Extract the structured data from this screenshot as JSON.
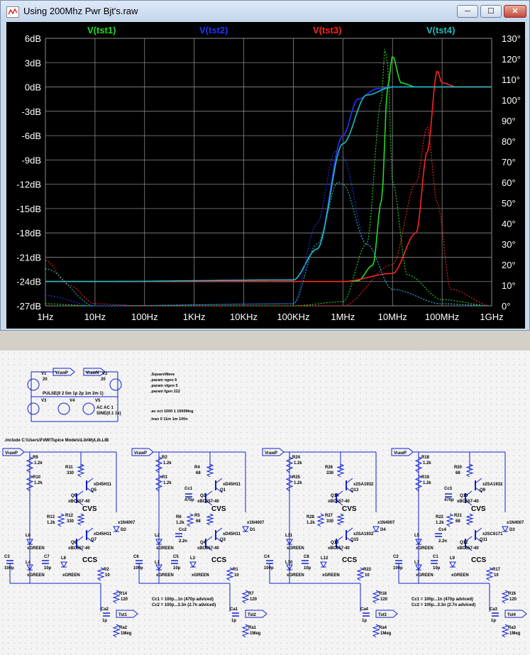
{
  "window": {
    "title": "Using 200Mhz Pwr Bjt's.raw",
    "buttons": {
      "minimize": "─",
      "maximize": "☐",
      "close": "✕"
    }
  },
  "colors": {
    "tst1": "#22dd22",
    "tst2": "#2233ff",
    "tst3": "#ff2222",
    "tst4": "#22bbbb",
    "grid": "#8a8a8a",
    "axis_text": "#ffffff",
    "schematic_blue": "#1020d0"
  },
  "chart_data": {
    "type": "line",
    "title": "",
    "x_scale": "log",
    "xlim": [
      1,
      1000000000
    ],
    "x_ticks": [
      "1Hz",
      "10Hz",
      "100Hz",
      "1KHz",
      "10KHz",
      "100KHz",
      "1MHz",
      "10MHz",
      "100MHz",
      "1GHz"
    ],
    "y_left_label": "dB",
    "ylim_left": [
      -27,
      6
    ],
    "y_left_ticks": [
      "6dB",
      "3dB",
      "0dB",
      "-3dB",
      "-6dB",
      "-9dB",
      "-12dB",
      "-15dB",
      "-18dB",
      "-21dB",
      "-24dB",
      "-27dB"
    ],
    "ylim_right": [
      0,
      130
    ],
    "y_right_ticks": [
      "130°",
      "120°",
      "110°",
      "100°",
      "90°",
      "80°",
      "70°",
      "60°",
      "50°",
      "40°",
      "30°",
      "20°",
      "10°",
      "0°"
    ],
    "grid": true,
    "legend": [
      "V(tst1)",
      "V(tst2)",
      "V(tst3)",
      "V(tst4)"
    ],
    "series": [
      {
        "name": "V(tst1)",
        "kind": "magnitude",
        "x": [
          1,
          10,
          100000,
          1000000,
          2000000,
          4000000,
          6000000,
          8000000,
          10000000,
          15000000,
          30000000,
          1000000000
        ],
        "y": [
          -24,
          -24,
          -24,
          -24,
          -23.9,
          -22,
          -14,
          0,
          3.8,
          0.5,
          0,
          0
        ]
      },
      {
        "name": "V(tst2)",
        "kind": "magnitude",
        "x": [
          1,
          10,
          100000,
          300000,
          1000000,
          2000000,
          5000000,
          10000000,
          1000000000
        ],
        "y": [
          -24,
          -24,
          -23.8,
          -20,
          -6,
          -1.5,
          -0.2,
          0,
          0
        ]
      },
      {
        "name": "V(tst3)",
        "kind": "magnitude",
        "x": [
          1,
          10,
          1000000,
          10000000,
          30000000,
          50000000,
          80000000,
          100000000,
          200000000,
          1000000000
        ],
        "y": [
          -24,
          -24,
          -24,
          -23,
          -18,
          -8,
          2,
          0.5,
          0,
          0
        ]
      },
      {
        "name": "V(tst4)",
        "kind": "magnitude",
        "x": [
          1,
          10,
          100000,
          300000,
          1000000,
          3000000,
          10000000,
          1000000000
        ],
        "y": [
          -24,
          -24,
          -23.8,
          -20,
          -7,
          -1,
          0,
          0
        ]
      },
      {
        "name": "V(tst1)",
        "kind": "phase",
        "x": [
          1,
          10,
          100000,
          1000000,
          3000000,
          6000000,
          7000000,
          8000000,
          10000000,
          20000000,
          100000000,
          1000000000
        ],
        "y": [
          1,
          0,
          0,
          2,
          30,
          100,
          125,
          118,
          60,
          15,
          3,
          0
        ]
      },
      {
        "name": "V(tst2)",
        "kind": "phase",
        "x": [
          1,
          10,
          100000,
          300000,
          700000,
          1000000,
          3000000,
          10000000,
          100000000,
          1000000000
        ],
        "y": [
          5,
          0,
          1,
          40,
          75,
          72,
          30,
          8,
          1,
          0
        ]
      },
      {
        "name": "V(tst3)",
        "kind": "phase",
        "x": [
          1,
          3,
          10,
          100,
          1000000,
          10000000,
          30000000,
          50000000,
          80000000,
          150000000,
          1000000000
        ],
        "y": [
          22,
          10,
          1,
          0,
          0,
          20,
          60,
          87,
          50,
          8,
          0
        ]
      },
      {
        "name": "V(tst4)",
        "kind": "phase",
        "x": [
          1,
          10,
          100000,
          300000,
          800000,
          1000000,
          3000000,
          10000000,
          100000000,
          1000000000
        ],
        "y": [
          18,
          0,
          1,
          30,
          60,
          59,
          30,
          8,
          1,
          0
        ]
      }
    ]
  },
  "schematic": {
    "directives": [
      ".SquareWave",
      ".param ogen 6",
      ".param vlgen 5",
      ".param fgen 222",
      ".ac oct 1000 1 1000Meg",
      ";tran 0 11m 1m 100n"
    ],
    "include": ".include C:\\Users\\FdW\\Tspice Models\\Lib\\MyLib.LIB",
    "sources": {
      "v1": "V1",
      "v1_val": "20",
      "v2": "V2",
      "v2_val": "20",
      "vrawp": "VrawP",
      "vrawn": "VrawN",
      "pulse": "PULSE(0 2 5m 1p 2p 1m 2m 1)",
      "v3": "V3",
      "v4": "V4",
      "v5": "V5",
      "v5_ac": "AC AC 1",
      "v5_sine": "SINE(0.1 1k)"
    },
    "stages": [
      {
        "rail": "VrawP",
        "r_top": "R9",
        "r_top_val": "1.2k",
        "r_bias": "R10",
        "r_bias_val": "1.2k",
        "r_emit": "R11",
        "r_emit_val": "330",
        "q_top": "Q5",
        "q_top_model": "xD45H11",
        "q_top2": "Q6",
        "q_top2_model": "xBC557-40",
        "label_cvs": "CVS",
        "r_mid": "R13",
        "r_mid_val": "1.2k",
        "r_mid2": "R12",
        "r_mid2_val": "330",
        "q_bot": "Q7",
        "q_bot_model": "xD45H11",
        "q_bot2": "Q8",
        "q_bot2_model": "xBC557-40",
        "label_ccs": "CCS",
        "diode": "D2",
        "diode_model": "x1N4007",
        "led1": "L6",
        "led2": "L4",
        "led3": "L8",
        "led_model": "xGREEN",
        "c1": "C3",
        "c1_val": "100p",
        "c2": "C7",
        "c2_val": "10p",
        "r_load": "R2",
        "r_load_val": "10",
        "r_out": "R14",
        "r_out_val": "120",
        "c_out": "Ca2",
        "c_out_val": "1p",
        "node": "Tst1",
        "r_term": "Ra2",
        "r_term_val": "1Meg",
        "cc_note": "",
        "cc_note2": ""
      },
      {
        "rail": "VrawP",
        "r_top": "R2",
        "r_top_val": "1.2k",
        "r_bias": "R3",
        "r_bias_val": "1.2k",
        "r_emit": "R4",
        "r_emit_val": "68",
        "q_top": "Q1",
        "q_top_model": "xD45H11",
        "q_top2": "Q2",
        "q_top2_model": "xBC557-40",
        "label_cvs": "CVS",
        "r_mid": "R6",
        "r_mid_val": "1.2k",
        "r_mid2": "R5",
        "r_mid2_val": "68",
        "q_bot": "Q3",
        "q_bot_model": "xD45H11",
        "q_bot2": "Q4",
        "q_bot2_model": "xBC557-40",
        "label_ccs": "CCS",
        "diode": "D1",
        "diode_model": "x1N4007",
        "led1": "L2",
        "led2": "L1",
        "led3": "L3",
        "led_model": "xGREEN",
        "c1": "C6",
        "c1_val": "100p",
        "c2": "C5",
        "c2_val": "10p",
        "r_load": "R1",
        "r_load_val": "10",
        "r_out": "R7",
        "r_out_val": "120",
        "c_out": "Ca1",
        "c_out_val": "1p",
        "node": "Tst2",
        "r_term": "Ra1",
        "r_term_val": "1Meg",
        "cc1": "Cc1",
        "cc1_val": "470p",
        "cc2": "Cc2",
        "cc2_val": "2.2n",
        "cc_note": "Cc1 = 100p...1n (470p adviced)",
        "cc_note2": "Cc2 = 100p...3.3n (2.7n adviced)"
      },
      {
        "rail": "VrawP",
        "r_top": "R24",
        "r_top_val": "1.2k",
        "r_bias": "R25",
        "r_bias_val": "1.2k",
        "r_emit": "R26",
        "r_emit_val": "330",
        "q_top": "Q13",
        "q_top_model": "x2SA1932",
        "q_top2": "Q14",
        "q_top2_model": "xBC557-40",
        "label_cvs": "CVS",
        "r_mid": "R28",
        "r_mid_val": "1.2k",
        "r_mid2": "R27",
        "r_mid2_val": "330",
        "q_bot": "Q15",
        "q_bot_model": "x2SA1932",
        "q_bot2": "Q16",
        "q_bot2_model": "xBC557-40",
        "label_ccs": "CCS",
        "diode": "D4",
        "diode_model": "x1N4007",
        "led1": "L11",
        "led2": "L10",
        "led3": "L12",
        "led_model": "xGREEN",
        "c1": "C4",
        "c1_val": "100p",
        "c2": "C8",
        "c2_val": "10p",
        "r_load": "R22",
        "r_load_val": "10",
        "r_out": "R18",
        "r_out_val": "120",
        "c_out": "Ca4",
        "c_out_val": "1p",
        "node": "Tst3",
        "r_term": "Ra4",
        "r_term_val": "1Meg",
        "cc_note": "",
        "cc_note2": ""
      },
      {
        "rail": "VrawP",
        "r_top": "R18",
        "r_top_val": "1.2k",
        "r_bias": "R19",
        "r_bias_val": "1.2k",
        "r_emit": "R20",
        "r_emit_val": "68",
        "q_top": "Q9",
        "q_top_model": "x2SA1932",
        "q_top2": "Q10",
        "q_top2_model": "xBC557-40",
        "label_cvs": "CVS",
        "r_mid": "R22",
        "r_mid_val": "1.2k",
        "r_mid2": "R21",
        "r_mid2_val": "68",
        "q_bot": "Q11",
        "q_bot_model": "x2SC6171",
        "q_bot2": "Q12",
        "q_bot2_model": "xBC557-40",
        "label_ccs": "CCS",
        "diode": "D3",
        "diode_model": "x1N4007",
        "led1": "L5",
        "led2": "L7",
        "led3": "L9",
        "led_model": "xGREEN",
        "c1": "C2",
        "c1_val": "100p",
        "c2": "C1",
        "c2_val": "10p",
        "r_load": "R17",
        "r_load_val": "10",
        "r_out": "R16",
        "r_out_val": "120",
        "c_out": "Ca3",
        "c_out_val": "1p",
        "node": "Tst4",
        "r_term": "Ra3",
        "r_term_val": "1Meg",
        "cc1": "Cc3",
        "cc1_val": "470p",
        "cc2": "Cc4",
        "cc2_val": "2.2n",
        "cc_note": "Cc1 = 100p...1n (470p adviced)",
        "cc_note2": "Cc2 = 100p...3.3n (2.7n adviced)"
      }
    ]
  }
}
